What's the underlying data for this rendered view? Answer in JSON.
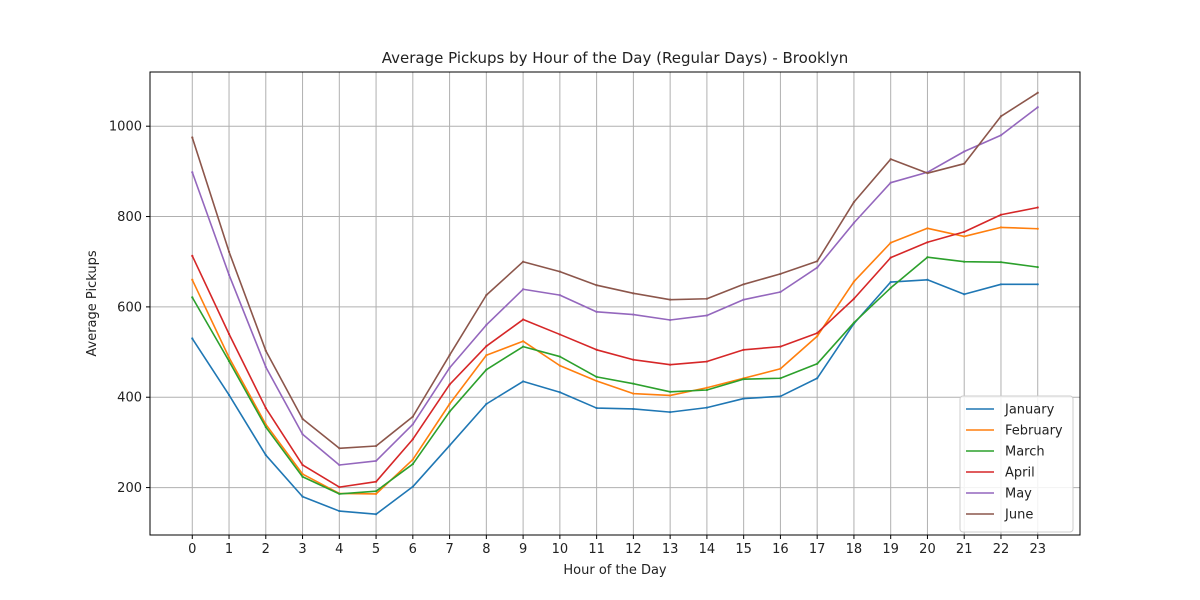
{
  "chart_data": {
    "type": "line",
    "title": "Average Pickups by Hour of the Day (Regular Days) - Brooklyn",
    "xlabel": "Hour of the Day",
    "ylabel": "Average Pickups",
    "x": [
      0,
      1,
      2,
      3,
      4,
      5,
      6,
      7,
      8,
      9,
      10,
      11,
      12,
      13,
      14,
      15,
      16,
      17,
      18,
      19,
      20,
      21,
      22,
      23
    ],
    "xlim": [
      -1.15,
      24.15
    ],
    "ylim": [
      95,
      1120
    ],
    "yticks": [
      200,
      400,
      600,
      800,
      1000
    ],
    "grid": true,
    "legend_position": "lower-right",
    "series": [
      {
        "name": "January",
        "color": "#1f77b4",
        "values": [
          530,
          405,
          272,
          180,
          148,
          141,
          202,
          293,
          385,
          435,
          411,
          376,
          374,
          367,
          377,
          397,
          402,
          442,
          563,
          655,
          660,
          628,
          650,
          650
        ]
      },
      {
        "name": "February",
        "color": "#ff7f0e",
        "values": [
          660,
          488,
          340,
          230,
          187,
          186,
          262,
          385,
          493,
          524,
          470,
          436,
          408,
          404,
          421,
          442,
          463,
          535,
          656,
          742,
          774,
          756,
          776,
          773
        ]
      },
      {
        "name": "March",
        "color": "#2ca02c",
        "values": [
          621,
          480,
          334,
          224,
          186,
          192,
          252,
          368,
          461,
          512,
          490,
          445,
          430,
          412,
          416,
          440,
          442,
          474,
          565,
          642,
          710,
          700,
          699,
          688
        ]
      },
      {
        "name": "April",
        "color": "#d62728",
        "values": [
          713,
          540,
          376,
          250,
          201,
          213,
          307,
          428,
          513,
          572,
          539,
          505,
          483,
          472,
          479,
          505,
          512,
          542,
          618,
          709,
          743,
          766,
          804,
          820
        ]
      },
      {
        "name": "May",
        "color": "#9467bd",
        "values": [
          898,
          671,
          467,
          318,
          250,
          259,
          340,
          465,
          560,
          639,
          626,
          589,
          583,
          571,
          581,
          616,
          633,
          687,
          786,
          875,
          898,
          944,
          980,
          1042
        ]
      },
      {
        "name": "June",
        "color": "#8c564b",
        "values": [
          975,
          722,
          503,
          352,
          287,
          292,
          357,
          493,
          626,
          700,
          678,
          648,
          630,
          616,
          618,
          650,
          673,
          701,
          832,
          927,
          896,
          917,
          1022,
          1074
        ]
      }
    ]
  }
}
